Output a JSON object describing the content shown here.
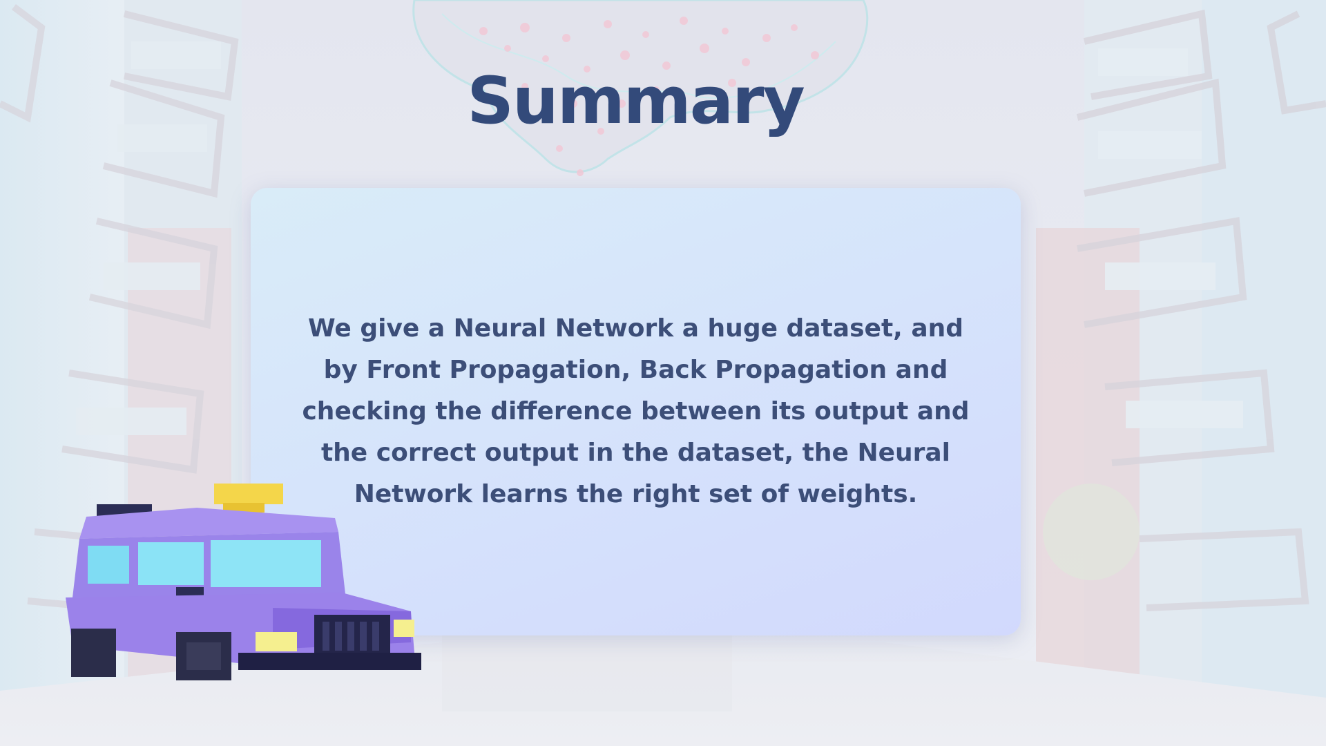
{
  "slide": {
    "title": "Summary",
    "body": "We give a Neural Network a huge dataset, and by Front Propagation, Back Propagation and checking the difference between its output and the correct output in the dataset, the Neural Network learns the right set of weights."
  },
  "colors": {
    "title": "#334a7a",
    "body_text": "#3c4e78",
    "card_background": "#d6e4fb",
    "page_background": "#e6e8f0"
  },
  "illustrations": {
    "background": "city-street-buildings-illustration",
    "brain": "neural-brain-illustration",
    "vehicle": "purple-voxel-taxi-illustration"
  }
}
